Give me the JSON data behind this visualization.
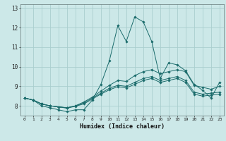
{
  "title": "",
  "xlabel": "Humidex (Indice chaleur)",
  "ylabel": "",
  "background_color": "#cce8e8",
  "grid_color": "#aacece",
  "line_color": "#1a6b6b",
  "xlim": [
    -0.5,
    23.5
  ],
  "ylim": [
    7.5,
    13.2
  ],
  "yticks": [
    8,
    9,
    10,
    11,
    12,
    13
  ],
  "xticks": [
    0,
    1,
    2,
    3,
    4,
    5,
    6,
    7,
    8,
    9,
    10,
    11,
    12,
    13,
    14,
    15,
    16,
    17,
    18,
    19,
    20,
    21,
    22,
    23
  ],
  "series": [
    [
      8.4,
      8.3,
      8.0,
      7.9,
      7.8,
      7.7,
      7.8,
      7.8,
      8.3,
      9.1,
      10.3,
      12.1,
      11.3,
      12.55,
      12.3,
      11.3,
      9.4,
      10.2,
      10.1,
      9.8,
      9.1,
      8.8,
      8.4,
      9.2
    ],
    [
      8.4,
      8.3,
      8.1,
      8.0,
      7.95,
      7.9,
      8.0,
      8.2,
      8.45,
      8.75,
      9.05,
      9.3,
      9.25,
      9.55,
      9.75,
      9.85,
      9.65,
      9.75,
      9.85,
      9.75,
      9.05,
      8.95,
      8.85,
      9.0
    ],
    [
      8.4,
      8.3,
      8.1,
      8.0,
      7.95,
      7.9,
      8.0,
      8.15,
      8.4,
      8.65,
      8.9,
      9.05,
      9.0,
      9.2,
      9.4,
      9.5,
      9.3,
      9.4,
      9.5,
      9.3,
      8.7,
      8.6,
      8.65,
      8.7
    ],
    [
      8.4,
      8.3,
      8.1,
      8.0,
      7.95,
      7.88,
      7.98,
      8.1,
      8.35,
      8.6,
      8.82,
      8.98,
      8.92,
      9.1,
      9.3,
      9.4,
      9.2,
      9.3,
      9.4,
      9.2,
      8.6,
      8.5,
      8.55,
      8.6
    ]
  ]
}
